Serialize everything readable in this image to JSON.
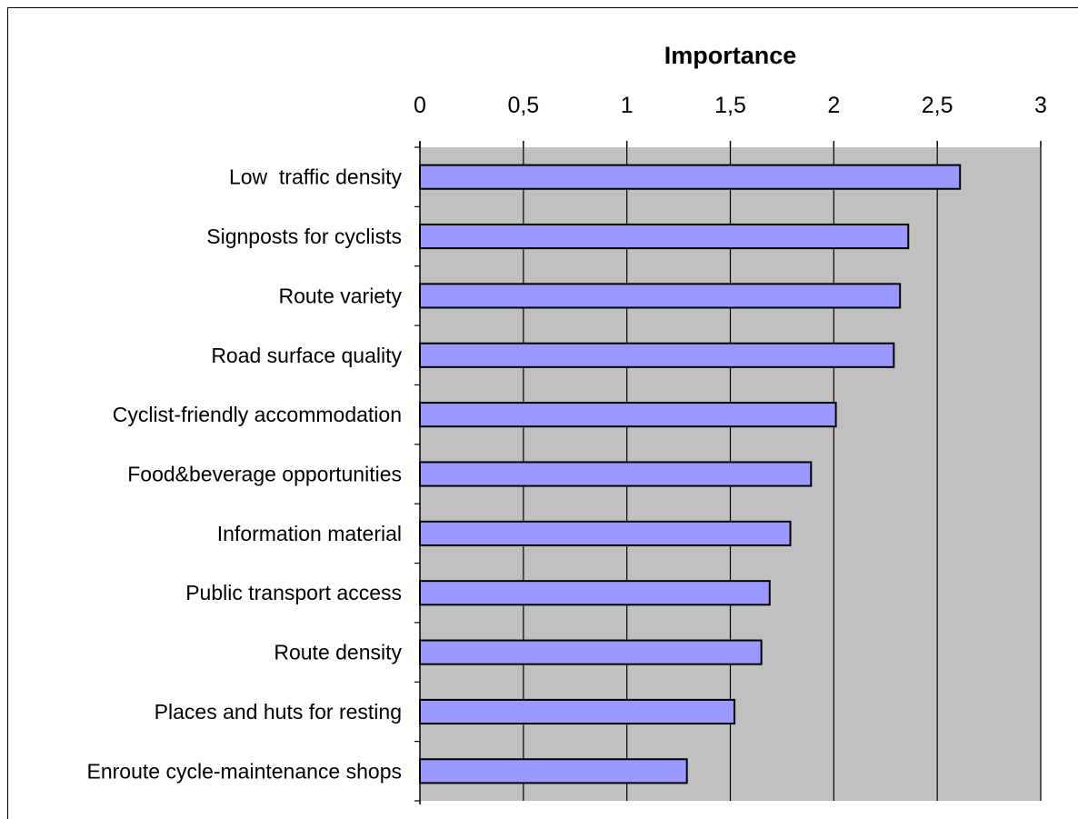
{
  "chart_data": {
    "type": "bar",
    "orientation": "horizontal",
    "title": "",
    "xlabel": "Importance",
    "ylabel": "",
    "xlim": [
      0,
      3
    ],
    "x_ticks": [
      "0",
      "0,5",
      "1",
      "1,5",
      "2",
      "2,5",
      "3"
    ],
    "x_tick_values": [
      0,
      0.5,
      1,
      1.5,
      2,
      2.5,
      3
    ],
    "x_axis_position": "top",
    "grid": true,
    "legend": "none",
    "categories": [
      "Low  traffic density",
      "Signposts for cyclists",
      "Route variety",
      "Road surface quality",
      "Cyclist-friendly accommodation",
      "Food&beverage opportunities",
      "Information material",
      "Public transport access",
      "Route density",
      "Places and huts for resting",
      "Enroute cycle-maintenance shops"
    ],
    "values": [
      2.61,
      2.36,
      2.32,
      2.29,
      2.01,
      1.89,
      1.79,
      1.69,
      1.65,
      1.52,
      1.29
    ]
  },
  "colors": {
    "plot_background": "#c0c0c0",
    "bar_fill": "#9999ff",
    "bar_stroke": "#000000",
    "gridline": "#000000"
  }
}
